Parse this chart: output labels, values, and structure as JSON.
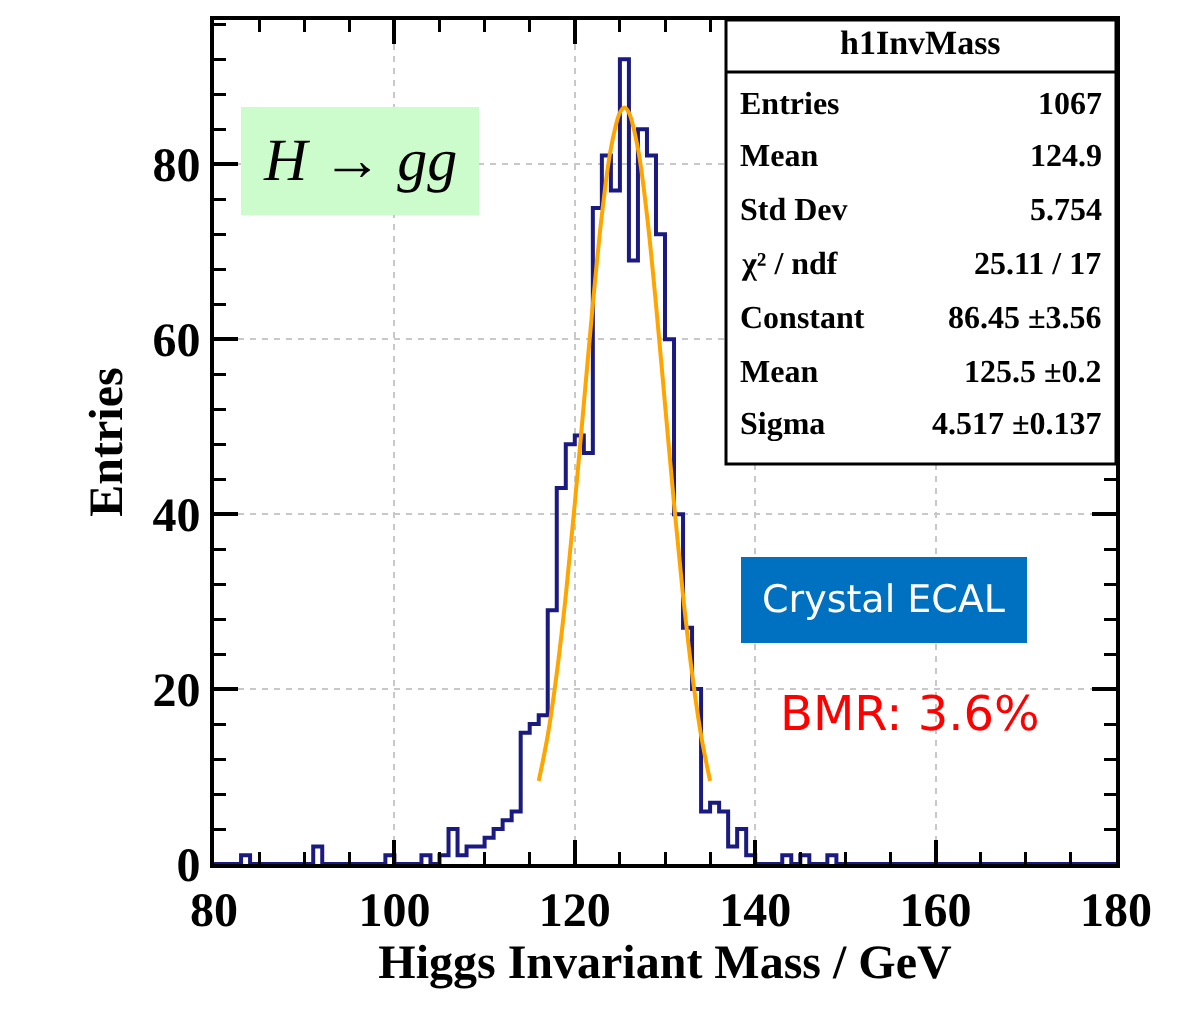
{
  "chart_data": {
    "type": "histogram",
    "xlabel": "Higgs Invariant Mass / GeV",
    "ylabel": "Entries",
    "bins": [
      80,
      81,
      82,
      83,
      84,
      85,
      86,
      87,
      88,
      89,
      90,
      91,
      92,
      93,
      94,
      95,
      96,
      97,
      98,
      99,
      100,
      101,
      102,
      103,
      104,
      105,
      106,
      107,
      108,
      109,
      110,
      111,
      112,
      113,
      114,
      115,
      116,
      117,
      118,
      119,
      120,
      121,
      122,
      123,
      124,
      125,
      126,
      127,
      128,
      129,
      130,
      131,
      132,
      133,
      134,
      135,
      136,
      137,
      138,
      139,
      140,
      141,
      142,
      143,
      144,
      145,
      146,
      147,
      148,
      149,
      150,
      151,
      152,
      153,
      154,
      155,
      156,
      157,
      158,
      159,
      160,
      161,
      162,
      163,
      164,
      165,
      166,
      167,
      168,
      169,
      170,
      171,
      172,
      173,
      174,
      175,
      176,
      177,
      178,
      179,
      180
    ],
    "values": [
      0,
      0,
      0,
      1,
      0,
      0,
      0,
      0,
      0,
      0,
      0,
      2,
      0,
      0,
      0,
      0,
      0,
      0,
      0,
      1,
      0,
      0,
      0,
      1,
      0,
      1,
      4,
      1,
      2,
      2,
      3,
      4,
      5,
      6,
      15,
      16,
      17,
      29,
      43,
      48,
      49,
      47,
      75,
      81,
      77,
      92,
      69,
      84,
      81,
      72,
      60,
      40,
      27,
      20,
      6,
      7,
      6,
      2,
      4,
      1,
      0,
      0,
      0,
      1,
      0,
      1,
      0,
      0,
      1,
      0,
      0,
      0,
      0,
      0,
      0,
      0,
      0,
      0,
      0,
      0,
      0,
      0,
      0,
      0,
      0,
      0,
      0,
      0,
      0,
      0,
      0,
      0,
      0,
      0,
      0,
      0,
      0,
      0,
      0,
      0
    ],
    "color": "#1a1a80",
    "series": [
      {
        "type": "line",
        "color": "#ffa500",
        "x": [
          116,
          117,
          118,
          119,
          120,
          121,
          122,
          123,
          124,
          125,
          125.5,
          126,
          127,
          128,
          129,
          130,
          131,
          132,
          133,
          134,
          135
        ],
        "values": [
          9.5,
          14.7,
          21.8,
          30.7,
          41.2,
          52.6,
          64.0,
          74.2,
          81.8,
          85.9,
          86.5,
          85.9,
          81.8,
          74.2,
          64.0,
          52.6,
          41.2,
          30.7,
          21.8,
          14.7,
          9.5
        ]
      }
    ],
    "xlim": [
      80,
      180
    ],
    "xticks": [
      80,
      100,
      120,
      140,
      160,
      180
    ],
    "ylim": [
      0,
      96.5
    ],
    "yticks": [
      0,
      20,
      40,
      60,
      80
    ],
    "grid": true,
    "annotations": [
      "h1InvMass",
      "Entries",
      "1067",
      "Mean",
      "124.9",
      "Std Dev",
      "5.754",
      "χ² / ndf",
      "25.11 / 17",
      "Constant",
      "86.45 ±3.56",
      "Mean",
      "125.5 ±0.2",
      "Sigma",
      "4.517 ±0.137",
      "H → gg",
      "Crystal ECAL",
      "BMR: 3.6%"
    ]
  }
}
